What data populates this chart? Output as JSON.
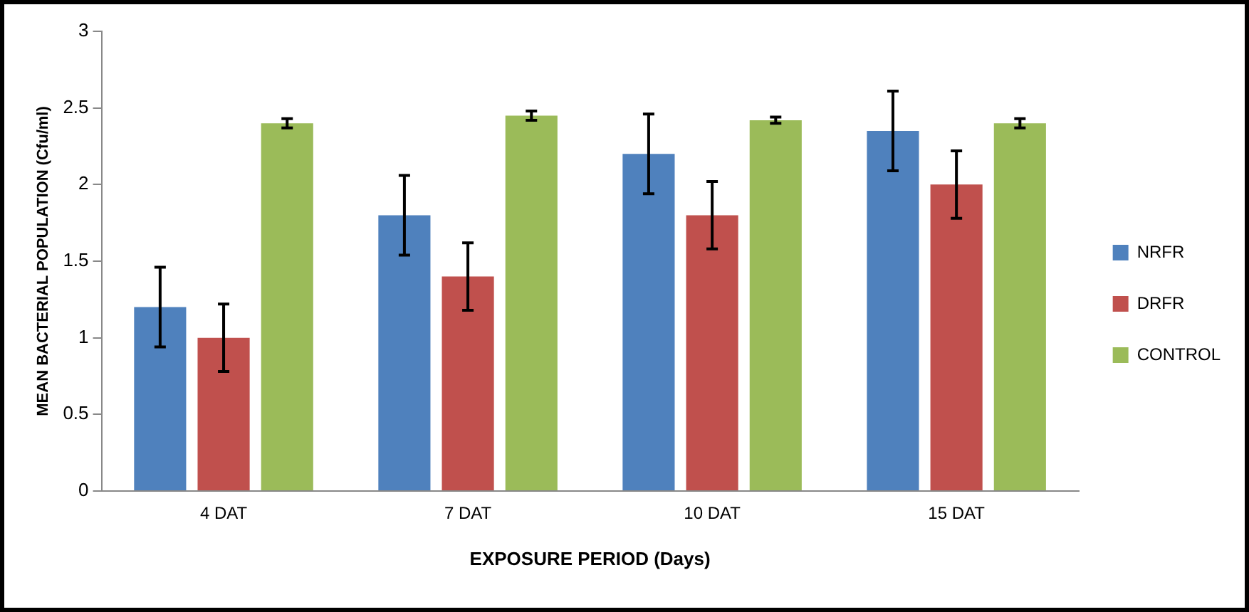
{
  "chart_data": {
    "type": "bar",
    "xlabel": "EXPOSURE PERIOD (Days)",
    "ylabel": "MEAN BACTERIAL POPULATION (Cfu/ml)",
    "categories": [
      "4 DAT",
      "7 DAT",
      "10 DAT",
      "15 DAT"
    ],
    "series": [
      {
        "name": "NRFR",
        "color": "#4f81bd",
        "values": [
          1.2,
          1.8,
          2.2,
          2.35
        ],
        "errors": [
          0.26,
          0.26,
          0.26,
          0.26
        ]
      },
      {
        "name": "DRFR",
        "color": "#c0504d",
        "values": [
          1.0,
          1.4,
          1.8,
          2.0
        ],
        "errors": [
          0.22,
          0.22,
          0.22,
          0.22
        ]
      },
      {
        "name": "CONTROL",
        "color": "#9bbb59",
        "values": [
          2.4,
          2.45,
          2.42,
          2.4
        ],
        "errors": [
          0.03,
          0.03,
          0.02,
          0.03
        ]
      }
    ],
    "ylim": [
      0,
      3
    ],
    "yticks": [
      0,
      0.5,
      1,
      1.5,
      2,
      2.5,
      3
    ],
    "grid": false,
    "legend": "right"
  }
}
